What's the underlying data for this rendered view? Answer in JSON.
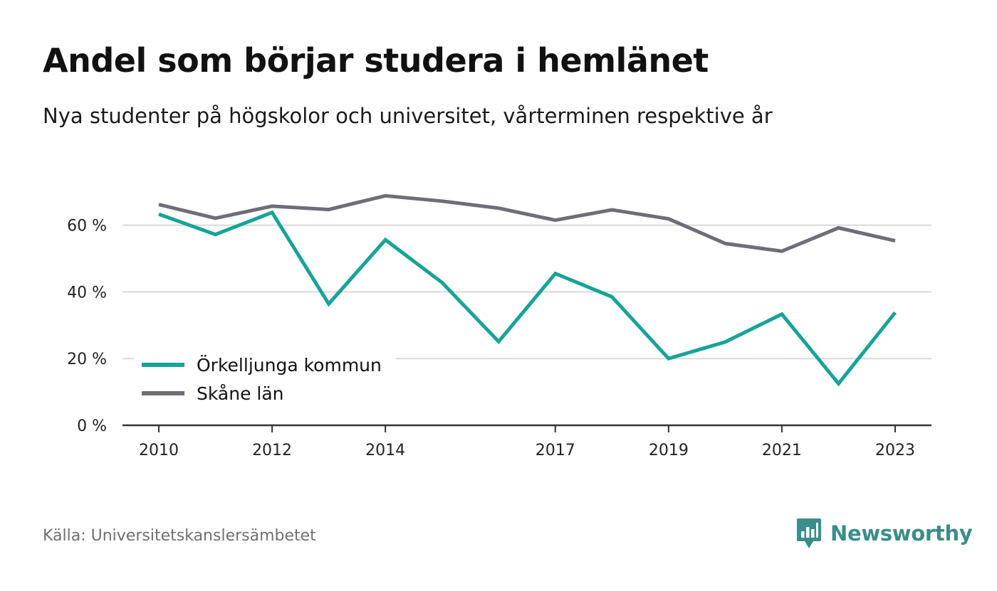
{
  "header": {
    "title": "Andel som börjar studera i hemlänet",
    "subtitle": "Nya studenter på högskolor och universitet, vårterminen respektive år"
  },
  "footer": {
    "source": "Källa: Universitetskanslersämbetet",
    "brand_name": "Newsworthy",
    "brand_icon": "newsworthy-logo-icon"
  },
  "colors": {
    "orkelljunga": "#17a398",
    "skane": "#6e6e78",
    "gridline": "#d9d9d9",
    "axis": "#333333",
    "brand": "#3a8d8a"
  },
  "chart_data": {
    "type": "line",
    "x": [
      2010,
      2011,
      2012,
      2013,
      2014,
      2015,
      2016,
      2017,
      2018,
      2019,
      2020,
      2021,
      2022,
      2023
    ],
    "x_tick_values": [
      2010,
      2012,
      2014,
      2017,
      2019,
      2021,
      2023
    ],
    "x_tick_labels": [
      "2010",
      "2012",
      "2014",
      "2017",
      "2019",
      "2021",
      "2023"
    ],
    "y_tick_values": [
      0,
      20,
      40,
      60
    ],
    "y_tick_labels": [
      "0 %",
      "20 %",
      "40 %",
      "60 %"
    ],
    "ylim": [
      0,
      70
    ],
    "xlim": [
      2009.37,
      2023.65
    ],
    "grid": true,
    "legend_position": "lower-left",
    "series": [
      {
        "name": "Örkelljunga kommun",
        "color": "#17a398",
        "values": [
          63.3,
          57.2,
          63.8,
          36.4,
          55.6,
          42.8,
          25.1,
          45.5,
          38.5,
          20.0,
          25.0,
          33.3,
          12.5,
          33.8
        ]
      },
      {
        "name": "Skåne län",
        "color": "#6e6e78",
        "values": [
          66.2,
          62.1,
          65.7,
          64.7,
          68.8,
          67.2,
          65.1,
          61.5,
          64.6,
          61.9,
          54.5,
          52.2,
          59.2,
          55.3
        ]
      }
    ]
  }
}
